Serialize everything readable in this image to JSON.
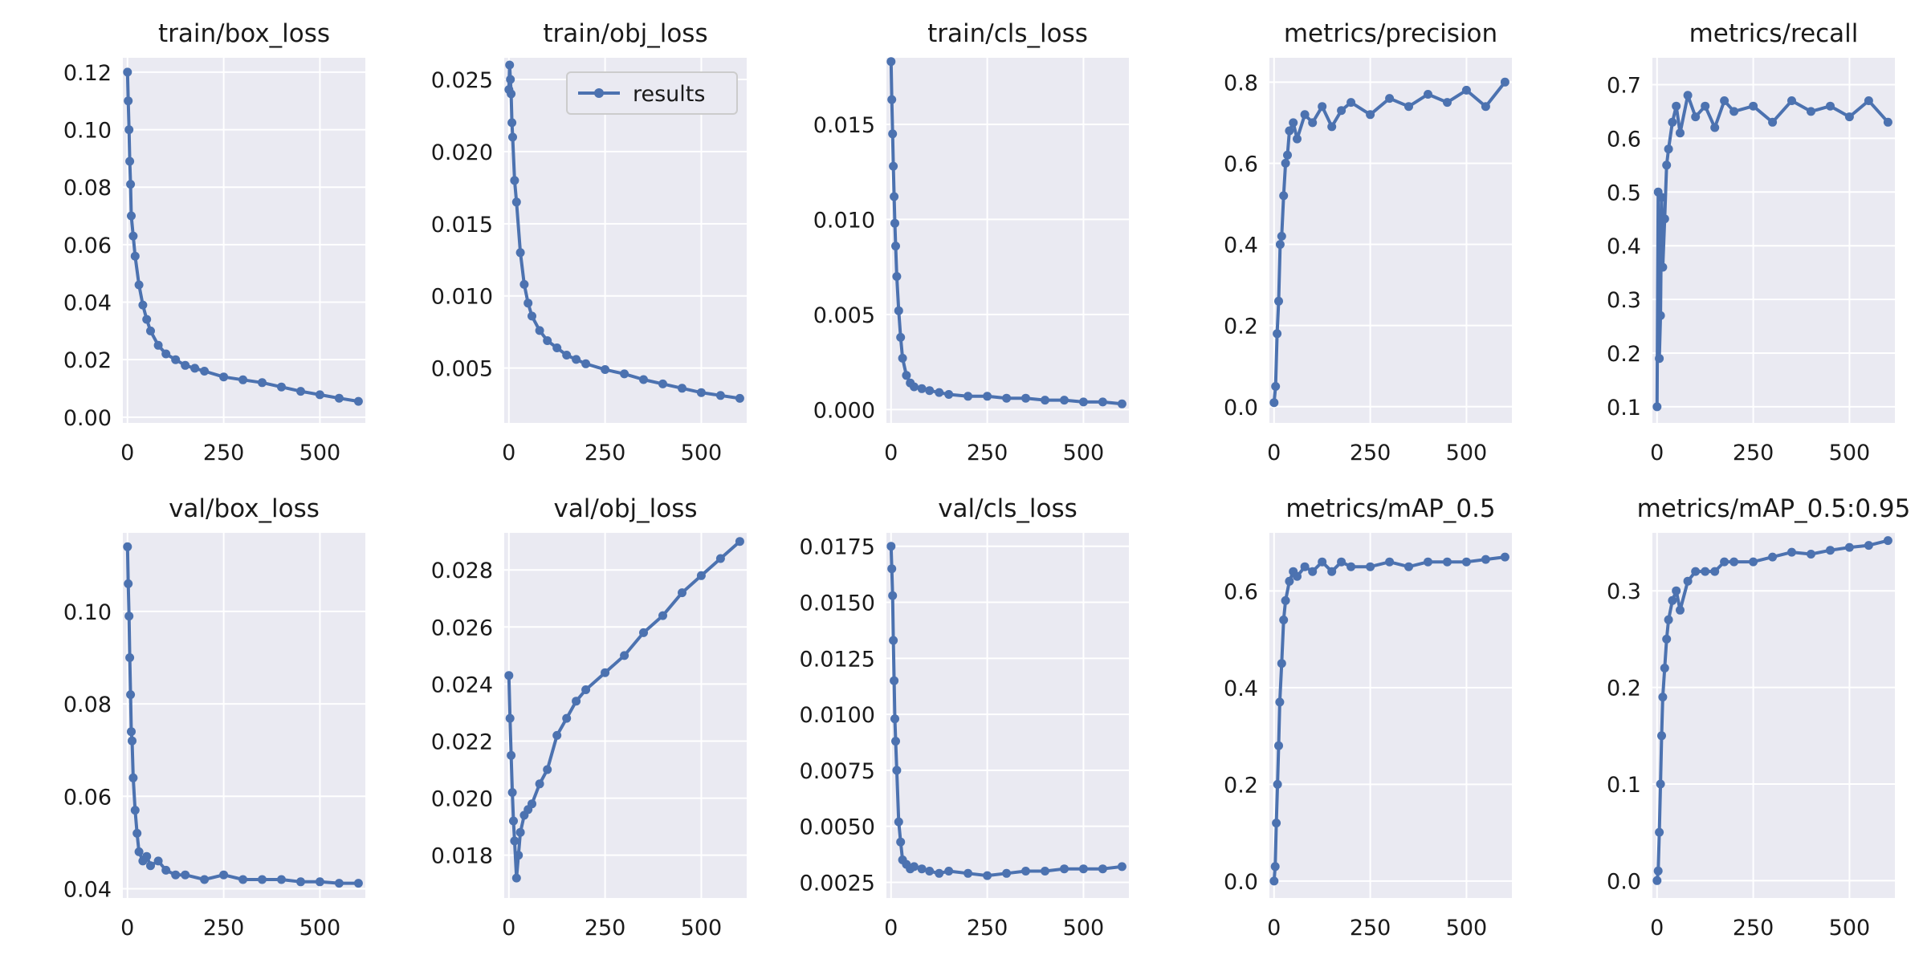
{
  "figure": {
    "colors": {
      "series": "#4c72b0",
      "panel_bg": "#eaeaf2",
      "grid": "#ffffff",
      "text": "#1a1a1a",
      "legend_border": "#cccccc"
    },
    "legend": {
      "label": "results",
      "panel": 1,
      "placement": "top-right"
    }
  },
  "chart_data": [
    {
      "type": "line",
      "title": "train/box_loss",
      "xlim": [
        -12,
        618
      ],
      "ylim": [
        -0.002,
        0.125
      ],
      "xticks": [
        0,
        250,
        500
      ],
      "xtick_labels": [
        "0",
        "250",
        "500"
      ],
      "yticks": [
        0.0,
        0.02,
        0.04,
        0.06,
        0.08,
        0.1,
        0.12
      ],
      "ytick_labels": [
        "0.00",
        "0.02",
        "0.04",
        "0.06",
        "0.08",
        "0.10",
        "0.12"
      ],
      "x": [
        0,
        2,
        4,
        6,
        8,
        10,
        15,
        20,
        30,
        40,
        50,
        60,
        80,
        100,
        125,
        150,
        175,
        200,
        250,
        300,
        350,
        400,
        450,
        500,
        550,
        600
      ],
      "y": [
        0.12,
        0.11,
        0.1,
        0.089,
        0.081,
        0.07,
        0.063,
        0.056,
        0.046,
        0.039,
        0.034,
        0.03,
        0.025,
        0.022,
        0.02,
        0.018,
        0.017,
        0.016,
        0.014,
        0.013,
        0.012,
        0.0105,
        0.009,
        0.0078,
        0.0066,
        0.0055
      ]
    },
    {
      "type": "line",
      "title": "train/obj_loss",
      "xlim": [
        -12,
        618
      ],
      "ylim": [
        0.0012,
        0.0265
      ],
      "xticks": [
        0,
        250,
        500
      ],
      "xtick_labels": [
        "0",
        "250",
        "500"
      ],
      "yticks": [
        0.005,
        0.01,
        0.015,
        0.02,
        0.025
      ],
      "ytick_labels": [
        "0.005",
        "0.010",
        "0.015",
        "0.020",
        "0.025"
      ],
      "x": [
        0,
        2,
        4,
        6,
        8,
        10,
        15,
        20,
        30,
        40,
        50,
        60,
        80,
        100,
        125,
        150,
        175,
        200,
        250,
        300,
        350,
        400,
        450,
        500,
        550,
        600
      ],
      "y": [
        0.0243,
        0.026,
        0.025,
        0.024,
        0.022,
        0.021,
        0.018,
        0.0165,
        0.013,
        0.0108,
        0.0095,
        0.0086,
        0.0076,
        0.0069,
        0.0064,
        0.0059,
        0.0056,
        0.0053,
        0.0049,
        0.0046,
        0.0042,
        0.0039,
        0.0036,
        0.0033,
        0.0031,
        0.0029
      ]
    },
    {
      "type": "line",
      "title": "train/cls_loss",
      "xlim": [
        -12,
        618
      ],
      "ylim": [
        -0.0007,
        0.0185
      ],
      "xticks": [
        0,
        250,
        500
      ],
      "xtick_labels": [
        "0",
        "250",
        "500"
      ],
      "yticks": [
        0.0,
        0.005,
        0.01,
        0.015
      ],
      "ytick_labels": [
        "0.000",
        "0.005",
        "0.010",
        "0.015"
      ],
      "x": [
        0,
        2,
        4,
        6,
        8,
        10,
        12,
        15,
        20,
        25,
        30,
        40,
        50,
        60,
        80,
        100,
        125,
        150,
        200,
        250,
        300,
        350,
        400,
        450,
        500,
        550,
        600
      ],
      "y": [
        0.0183,
        0.0163,
        0.0145,
        0.0128,
        0.0112,
        0.0098,
        0.0086,
        0.007,
        0.0052,
        0.0038,
        0.0027,
        0.0018,
        0.0014,
        0.0012,
        0.0011,
        0.001,
        0.0009,
        0.0008,
        0.0007,
        0.0007,
        0.0006,
        0.0006,
        0.0005,
        0.0005,
        0.0004,
        0.0004,
        0.0003
      ]
    },
    {
      "type": "line",
      "title": "metrics/precision",
      "xlim": [
        -12,
        618
      ],
      "ylim": [
        -0.04,
        0.86
      ],
      "xticks": [
        0,
        250,
        500
      ],
      "xtick_labels": [
        "0",
        "250",
        "500"
      ],
      "yticks": [
        0.0,
        0.2,
        0.4,
        0.6,
        0.8
      ],
      "ytick_labels": [
        "0.0",
        "0.2",
        "0.4",
        "0.6",
        "0.8"
      ],
      "x": [
        0,
        4,
        8,
        12,
        16,
        20,
        25,
        30,
        35,
        40,
        50,
        60,
        80,
        100,
        125,
        150,
        175,
        200,
        250,
        300,
        350,
        400,
        450,
        500,
        550,
        600
      ],
      "y": [
        0.01,
        0.05,
        0.18,
        0.26,
        0.4,
        0.42,
        0.52,
        0.6,
        0.62,
        0.68,
        0.7,
        0.66,
        0.72,
        0.7,
        0.74,
        0.69,
        0.73,
        0.75,
        0.72,
        0.76,
        0.74,
        0.77,
        0.75,
        0.78,
        0.74,
        0.8
      ]
    },
    {
      "type": "line",
      "title": "metrics/recall",
      "xlim": [
        -12,
        618
      ],
      "ylim": [
        0.07,
        0.75
      ],
      "xticks": [
        0,
        250,
        500
      ],
      "xtick_labels": [
        "0",
        "250",
        "500"
      ],
      "yticks": [
        0.1,
        0.2,
        0.3,
        0.4,
        0.5,
        0.6,
        0.7
      ],
      "ytick_labels": [
        "0.1",
        "0.2",
        "0.3",
        "0.4",
        "0.5",
        "0.6",
        "0.7"
      ],
      "x": [
        0,
        3,
        6,
        9,
        12,
        15,
        20,
        25,
        30,
        40,
        50,
        60,
        80,
        100,
        125,
        150,
        175,
        200,
        250,
        300,
        350,
        400,
        450,
        500,
        550,
        600
      ],
      "y": [
        0.1,
        0.5,
        0.19,
        0.27,
        0.49,
        0.36,
        0.45,
        0.55,
        0.58,
        0.63,
        0.66,
        0.61,
        0.68,
        0.64,
        0.66,
        0.62,
        0.67,
        0.65,
        0.66,
        0.63,
        0.67,
        0.65,
        0.66,
        0.64,
        0.67,
        0.63
      ]
    },
    {
      "type": "line",
      "title": "val/box_loss",
      "xlim": [
        -12,
        618
      ],
      "ylim": [
        0.038,
        0.117
      ],
      "xticks": [
        0,
        250,
        500
      ],
      "xtick_labels": [
        "0",
        "250",
        "500"
      ],
      "yticks": [
        0.04,
        0.06,
        0.08,
        0.1
      ],
      "ytick_labels": [
        "0.04",
        "0.06",
        "0.08",
        "0.10"
      ],
      "x": [
        0,
        2,
        4,
        6,
        8,
        10,
        12,
        15,
        20,
        25,
        30,
        40,
        50,
        60,
        80,
        100,
        125,
        150,
        200,
        250,
        300,
        350,
        400,
        450,
        500,
        550,
        600
      ],
      "y": [
        0.114,
        0.106,
        0.099,
        0.09,
        0.082,
        0.074,
        0.072,
        0.064,
        0.057,
        0.052,
        0.048,
        0.046,
        0.047,
        0.045,
        0.046,
        0.044,
        0.043,
        0.043,
        0.042,
        0.043,
        0.042,
        0.042,
        0.042,
        0.0415,
        0.0415,
        0.0412,
        0.0412
      ]
    },
    {
      "type": "line",
      "title": "val/obj_loss",
      "xlim": [
        -12,
        618
      ],
      "ylim": [
        0.0165,
        0.0293
      ],
      "xticks": [
        0,
        250,
        500
      ],
      "xtick_labels": [
        "0",
        "250",
        "500"
      ],
      "yticks": [
        0.018,
        0.02,
        0.022,
        0.024,
        0.026,
        0.028
      ],
      "ytick_labels": [
        "0.018",
        "0.020",
        "0.022",
        "0.024",
        "0.026",
        "0.028"
      ],
      "x": [
        0,
        3,
        6,
        9,
        12,
        15,
        20,
        25,
        30,
        40,
        50,
        60,
        80,
        100,
        125,
        150,
        175,
        200,
        250,
        300,
        350,
        400,
        450,
        500,
        550,
        600
      ],
      "y": [
        0.0243,
        0.0228,
        0.0215,
        0.0202,
        0.0192,
        0.0185,
        0.0172,
        0.018,
        0.0188,
        0.0194,
        0.0196,
        0.0198,
        0.0205,
        0.021,
        0.0222,
        0.0228,
        0.0234,
        0.0238,
        0.0244,
        0.025,
        0.0258,
        0.0264,
        0.0272,
        0.0278,
        0.0284,
        0.029
      ]
    },
    {
      "type": "line",
      "title": "val/cls_loss",
      "xlim": [
        -12,
        618
      ],
      "ylim": [
        0.0018,
        0.0181
      ],
      "xticks": [
        0,
        250,
        500
      ],
      "xtick_labels": [
        "0",
        "250",
        "500"
      ],
      "yticks": [
        0.0025,
        0.005,
        0.0075,
        0.01,
        0.0125,
        0.015,
        0.0175
      ],
      "ytick_labels": [
        "0.0025",
        "0.0050",
        "0.0075",
        "0.0100",
        "0.0125",
        "0.0150",
        "0.0175"
      ],
      "x": [
        0,
        2,
        4,
        6,
        8,
        10,
        12,
        15,
        20,
        25,
        30,
        40,
        50,
        60,
        80,
        100,
        125,
        150,
        200,
        250,
        300,
        350,
        400,
        450,
        500,
        550,
        600
      ],
      "y": [
        0.0175,
        0.0165,
        0.0153,
        0.0133,
        0.0115,
        0.0098,
        0.0088,
        0.0075,
        0.0052,
        0.0043,
        0.0035,
        0.0033,
        0.0031,
        0.0032,
        0.0031,
        0.003,
        0.0029,
        0.003,
        0.0029,
        0.0028,
        0.0029,
        0.003,
        0.003,
        0.0031,
        0.0031,
        0.0031,
        0.0032
      ]
    },
    {
      "type": "line",
      "title": "metrics/mAP_0.5",
      "xlim": [
        -12,
        618
      ],
      "ylim": [
        -0.035,
        0.72
      ],
      "xticks": [
        0,
        250,
        500
      ],
      "xtick_labels": [
        "0",
        "250",
        "500"
      ],
      "yticks": [
        0.0,
        0.2,
        0.4,
        0.6
      ],
      "ytick_labels": [
        "0.0",
        "0.2",
        "0.4",
        "0.6"
      ],
      "x": [
        0,
        3,
        6,
        9,
        12,
        15,
        20,
        25,
        30,
        40,
        50,
        60,
        80,
        100,
        125,
        150,
        175,
        200,
        250,
        300,
        350,
        400,
        450,
        500,
        550,
        600
      ],
      "y": [
        0.0,
        0.03,
        0.12,
        0.2,
        0.28,
        0.37,
        0.45,
        0.54,
        0.58,
        0.62,
        0.64,
        0.63,
        0.65,
        0.64,
        0.66,
        0.64,
        0.66,
        0.65,
        0.65,
        0.66,
        0.65,
        0.66,
        0.66,
        0.66,
        0.665,
        0.67
      ]
    },
    {
      "type": "line",
      "title": "metrics/mAP_0.5:0.95",
      "xlim": [
        -12,
        618
      ],
      "ylim": [
        -0.018,
        0.36
      ],
      "xticks": [
        0,
        250,
        500
      ],
      "xtick_labels": [
        "0",
        "250",
        "500"
      ],
      "yticks": [
        0.0,
        0.1,
        0.2,
        0.3
      ],
      "ytick_labels": [
        "0.0",
        "0.1",
        "0.2",
        "0.3"
      ],
      "x": [
        0,
        3,
        6,
        9,
        12,
        15,
        20,
        25,
        30,
        40,
        50,
        60,
        80,
        100,
        125,
        150,
        175,
        200,
        250,
        300,
        350,
        400,
        450,
        500,
        550,
        600
      ],
      "y": [
        0.0,
        0.01,
        0.05,
        0.1,
        0.15,
        0.19,
        0.22,
        0.25,
        0.27,
        0.29,
        0.3,
        0.28,
        0.31,
        0.32,
        0.32,
        0.32,
        0.33,
        0.33,
        0.33,
        0.335,
        0.34,
        0.338,
        0.342,
        0.345,
        0.347,
        0.352
      ]
    }
  ]
}
